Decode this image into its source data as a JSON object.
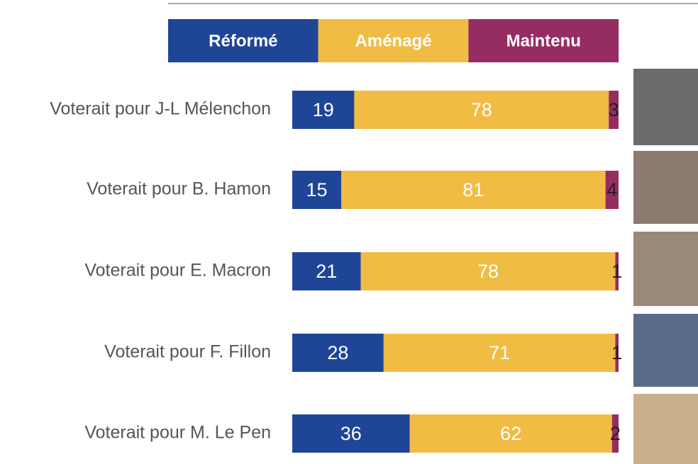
{
  "chart_data": {
    "type": "stacked-bar",
    "categories": [
      "Voterait pour J-L Mélenchon",
      "Voterait pour B. Hamon",
      "Voterait pour E. Macron",
      "Voterait pour F. Fillon",
      "Voterait pour M. Le Pen"
    ],
    "series": [
      {
        "name": "Réformé",
        "color": "#1f4596",
        "values": [
          19,
          15,
          21,
          28,
          36
        ]
      },
      {
        "name": "Aménagé",
        "color": "#f0bc44",
        "values": [
          78,
          81,
          78,
          71,
          62
        ]
      },
      {
        "name": "Maintenu",
        "color": "#962d62",
        "values": [
          3,
          4,
          1,
          1,
          2
        ]
      }
    ]
  }
}
